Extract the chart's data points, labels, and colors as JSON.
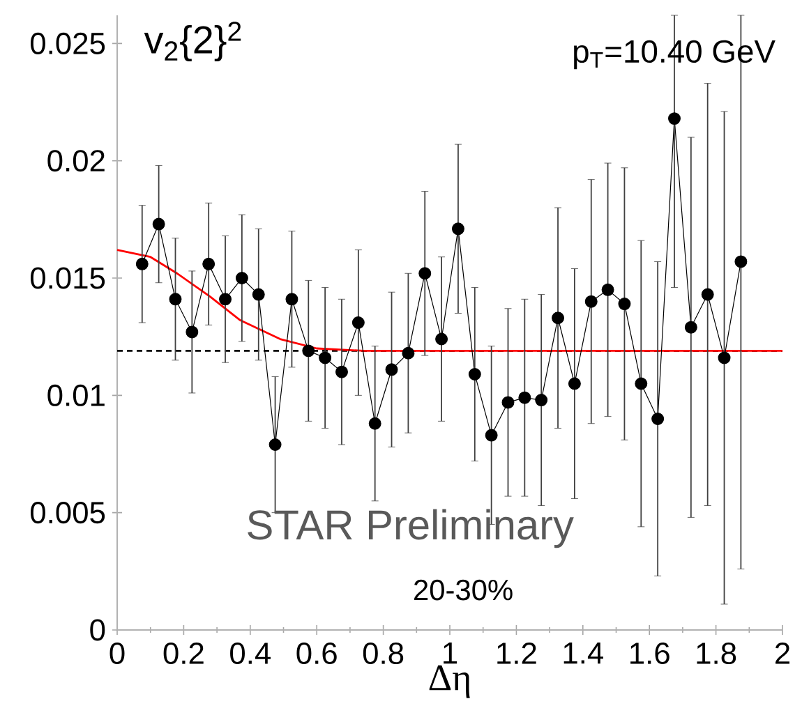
{
  "chart_data": {
    "type": "line",
    "title": "v$_{2}${2}$^{2}$",
    "xlabel": "Δη",
    "annotations": [
      "p$_{T}$=10.40 GeV",
      "STAR Preliminary",
      "20-30%"
    ],
    "xlim": [
      0,
      2
    ],
    "ylim": [
      0,
      0.0262
    ],
    "xticks": [
      0,
      0.2,
      0.4,
      0.6,
      0.8,
      1,
      1.2,
      1.4,
      1.6,
      1.8,
      2
    ],
    "yticks": [
      0,
      0.005,
      0.01,
      0.015,
      0.02,
      0.025
    ],
    "grid": false,
    "ref_lines": [
      {
        "axis": "y",
        "value": 0.0119,
        "color": "#000000",
        "line_style": "dashed"
      }
    ],
    "series": [
      {
        "marker": "circle",
        "color": "#000000",
        "x": [
          0.075,
          0.125,
          0.175,
          0.225,
          0.275,
          0.325,
          0.375,
          0.425,
          0.475,
          0.525,
          0.575,
          0.625,
          0.675,
          0.725,
          0.775,
          0.825,
          0.875,
          0.925,
          0.975,
          1.025,
          1.075,
          1.125,
          1.175,
          1.225,
          1.275,
          1.325,
          1.375,
          1.425,
          1.475,
          1.525,
          1.575,
          1.625,
          1.675,
          1.725,
          1.775,
          1.825,
          1.875
        ],
        "values": [
          0.0156,
          0.0173,
          0.0141,
          0.0127,
          0.0156,
          0.0141,
          0.015,
          0.0143,
          0.0079,
          0.0141,
          0.0119,
          0.0116,
          0.011,
          0.0131,
          0.0088,
          0.0111,
          0.0118,
          0.0152,
          0.0124,
          0.0171,
          0.0109,
          0.0083,
          0.0097,
          0.0099,
          0.0098,
          0.0133,
          0.0105,
          0.014,
          0.0145,
          0.0139,
          0.0105,
          0.009,
          0.0218,
          0.0129,
          0.0143,
          0.0116,
          0.0157
        ],
        "errors": [
          0.0025,
          0.0025,
          0.0026,
          0.0026,
          0.0026,
          0.0027,
          0.0027,
          0.0028,
          0.0029,
          0.0029,
          0.003,
          0.003,
          0.0031,
          0.0031,
          0.0033,
          0.0033,
          0.0034,
          0.0035,
          0.0035,
          0.0036,
          0.0037,
          0.0038,
          0.004,
          0.0042,
          0.0045,
          0.0047,
          0.0049,
          0.0052,
          0.0054,
          0.0058,
          0.0061,
          0.0067,
          [
            0.0146,
            0.0262
          ],
          0.0081,
          0.009,
          0.0105,
          [
            0.0026,
            0.0262
          ]
        ]
      },
      {
        "marker": "none",
        "color": "#ff0000",
        "x": [
          0,
          0.1,
          0.18,
          0.28,
          0.37,
          0.49,
          0.6,
          0.74,
          1,
          1.5,
          2
        ],
        "values": [
          0.0162,
          0.0159,
          0.0152,
          0.0142,
          0.0132,
          0.0124,
          0.012,
          0.0119,
          0.0119,
          0.0119,
          0.0119
        ]
      }
    ]
  }
}
